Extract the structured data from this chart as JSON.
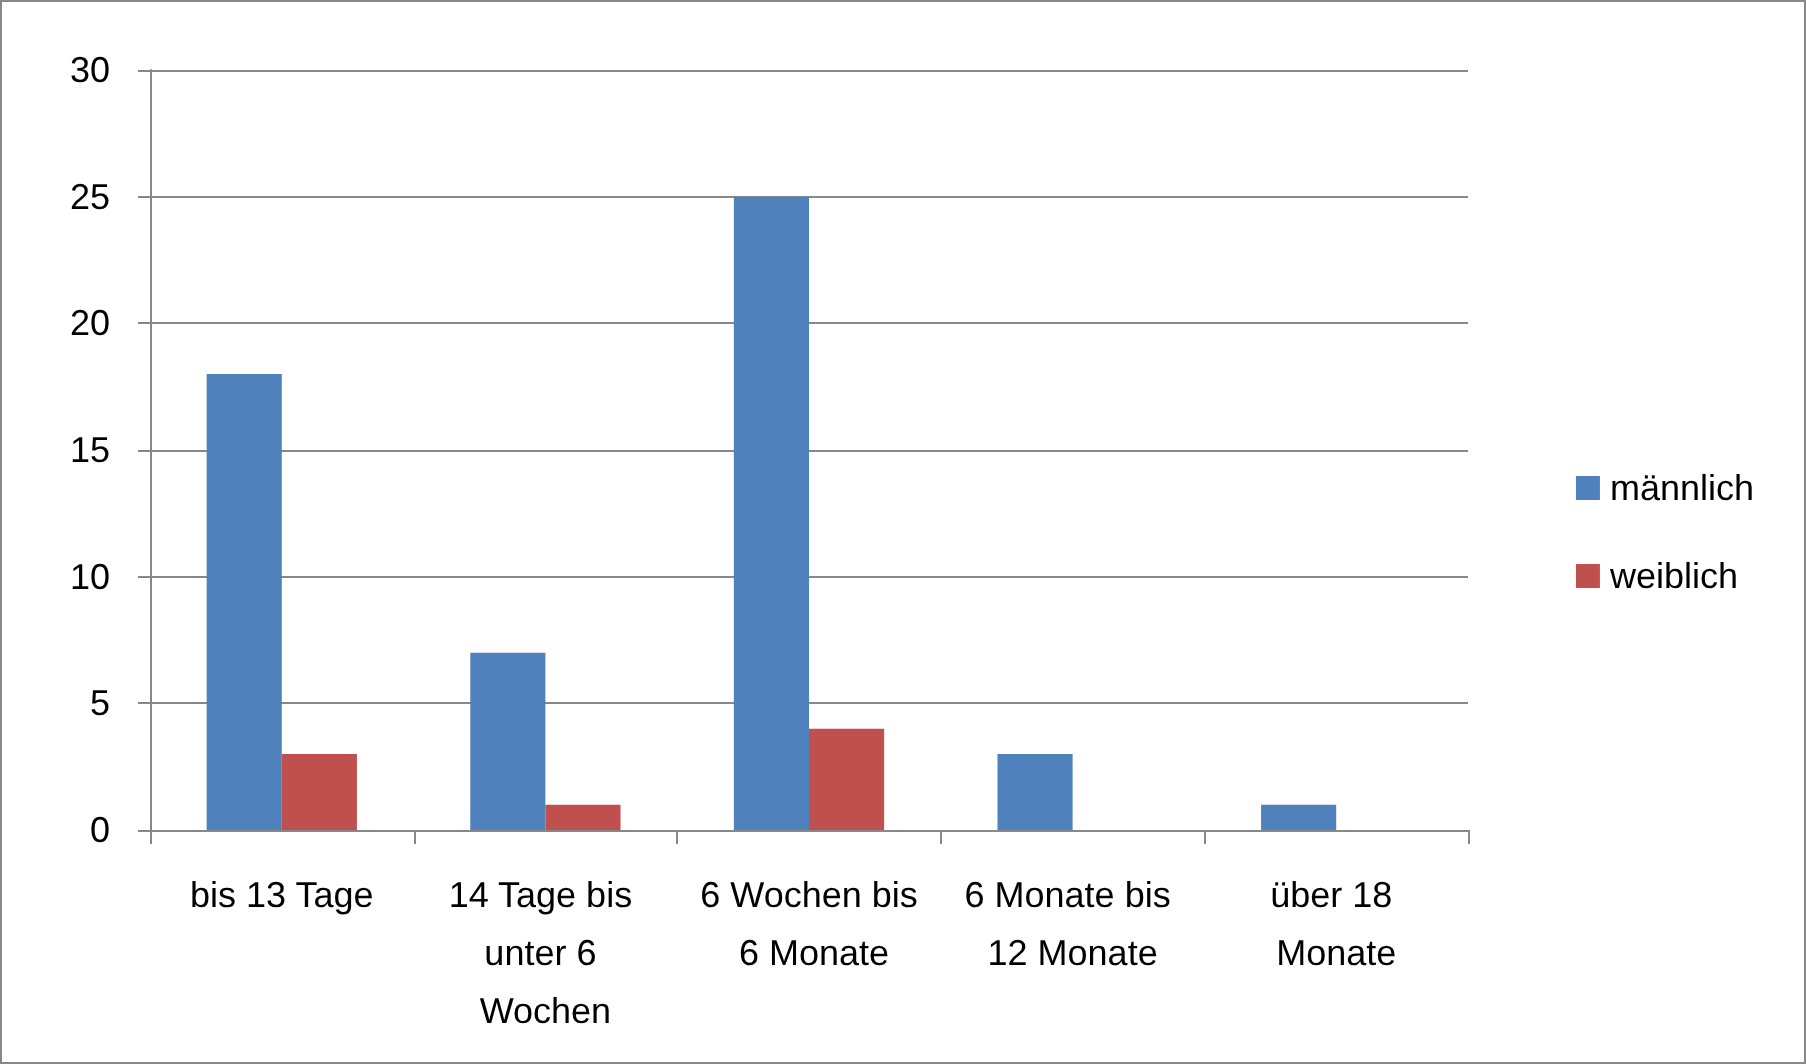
{
  "chart_data": {
    "type": "bar",
    "categories": [
      "bis 13 Tage",
      "14 Tage bis unter 6 Wochen",
      "6 Wochen bis 6 Monate",
      "6 Monate bis 12 Monate",
      "über 18 Monate"
    ],
    "series": [
      {
        "name": "männlich",
        "color": "#4f81bd",
        "values": [
          18,
          7,
          25,
          3,
          1
        ]
      },
      {
        "name": "weiblich",
        "color": "#c0504d",
        "values": [
          3,
          1,
          4,
          0,
          0
        ]
      }
    ],
    "ylim": [
      0,
      30
    ],
    "yticks": [
      0,
      5,
      10,
      15,
      20,
      25,
      30
    ],
    "grid": "y",
    "legend": "right"
  }
}
